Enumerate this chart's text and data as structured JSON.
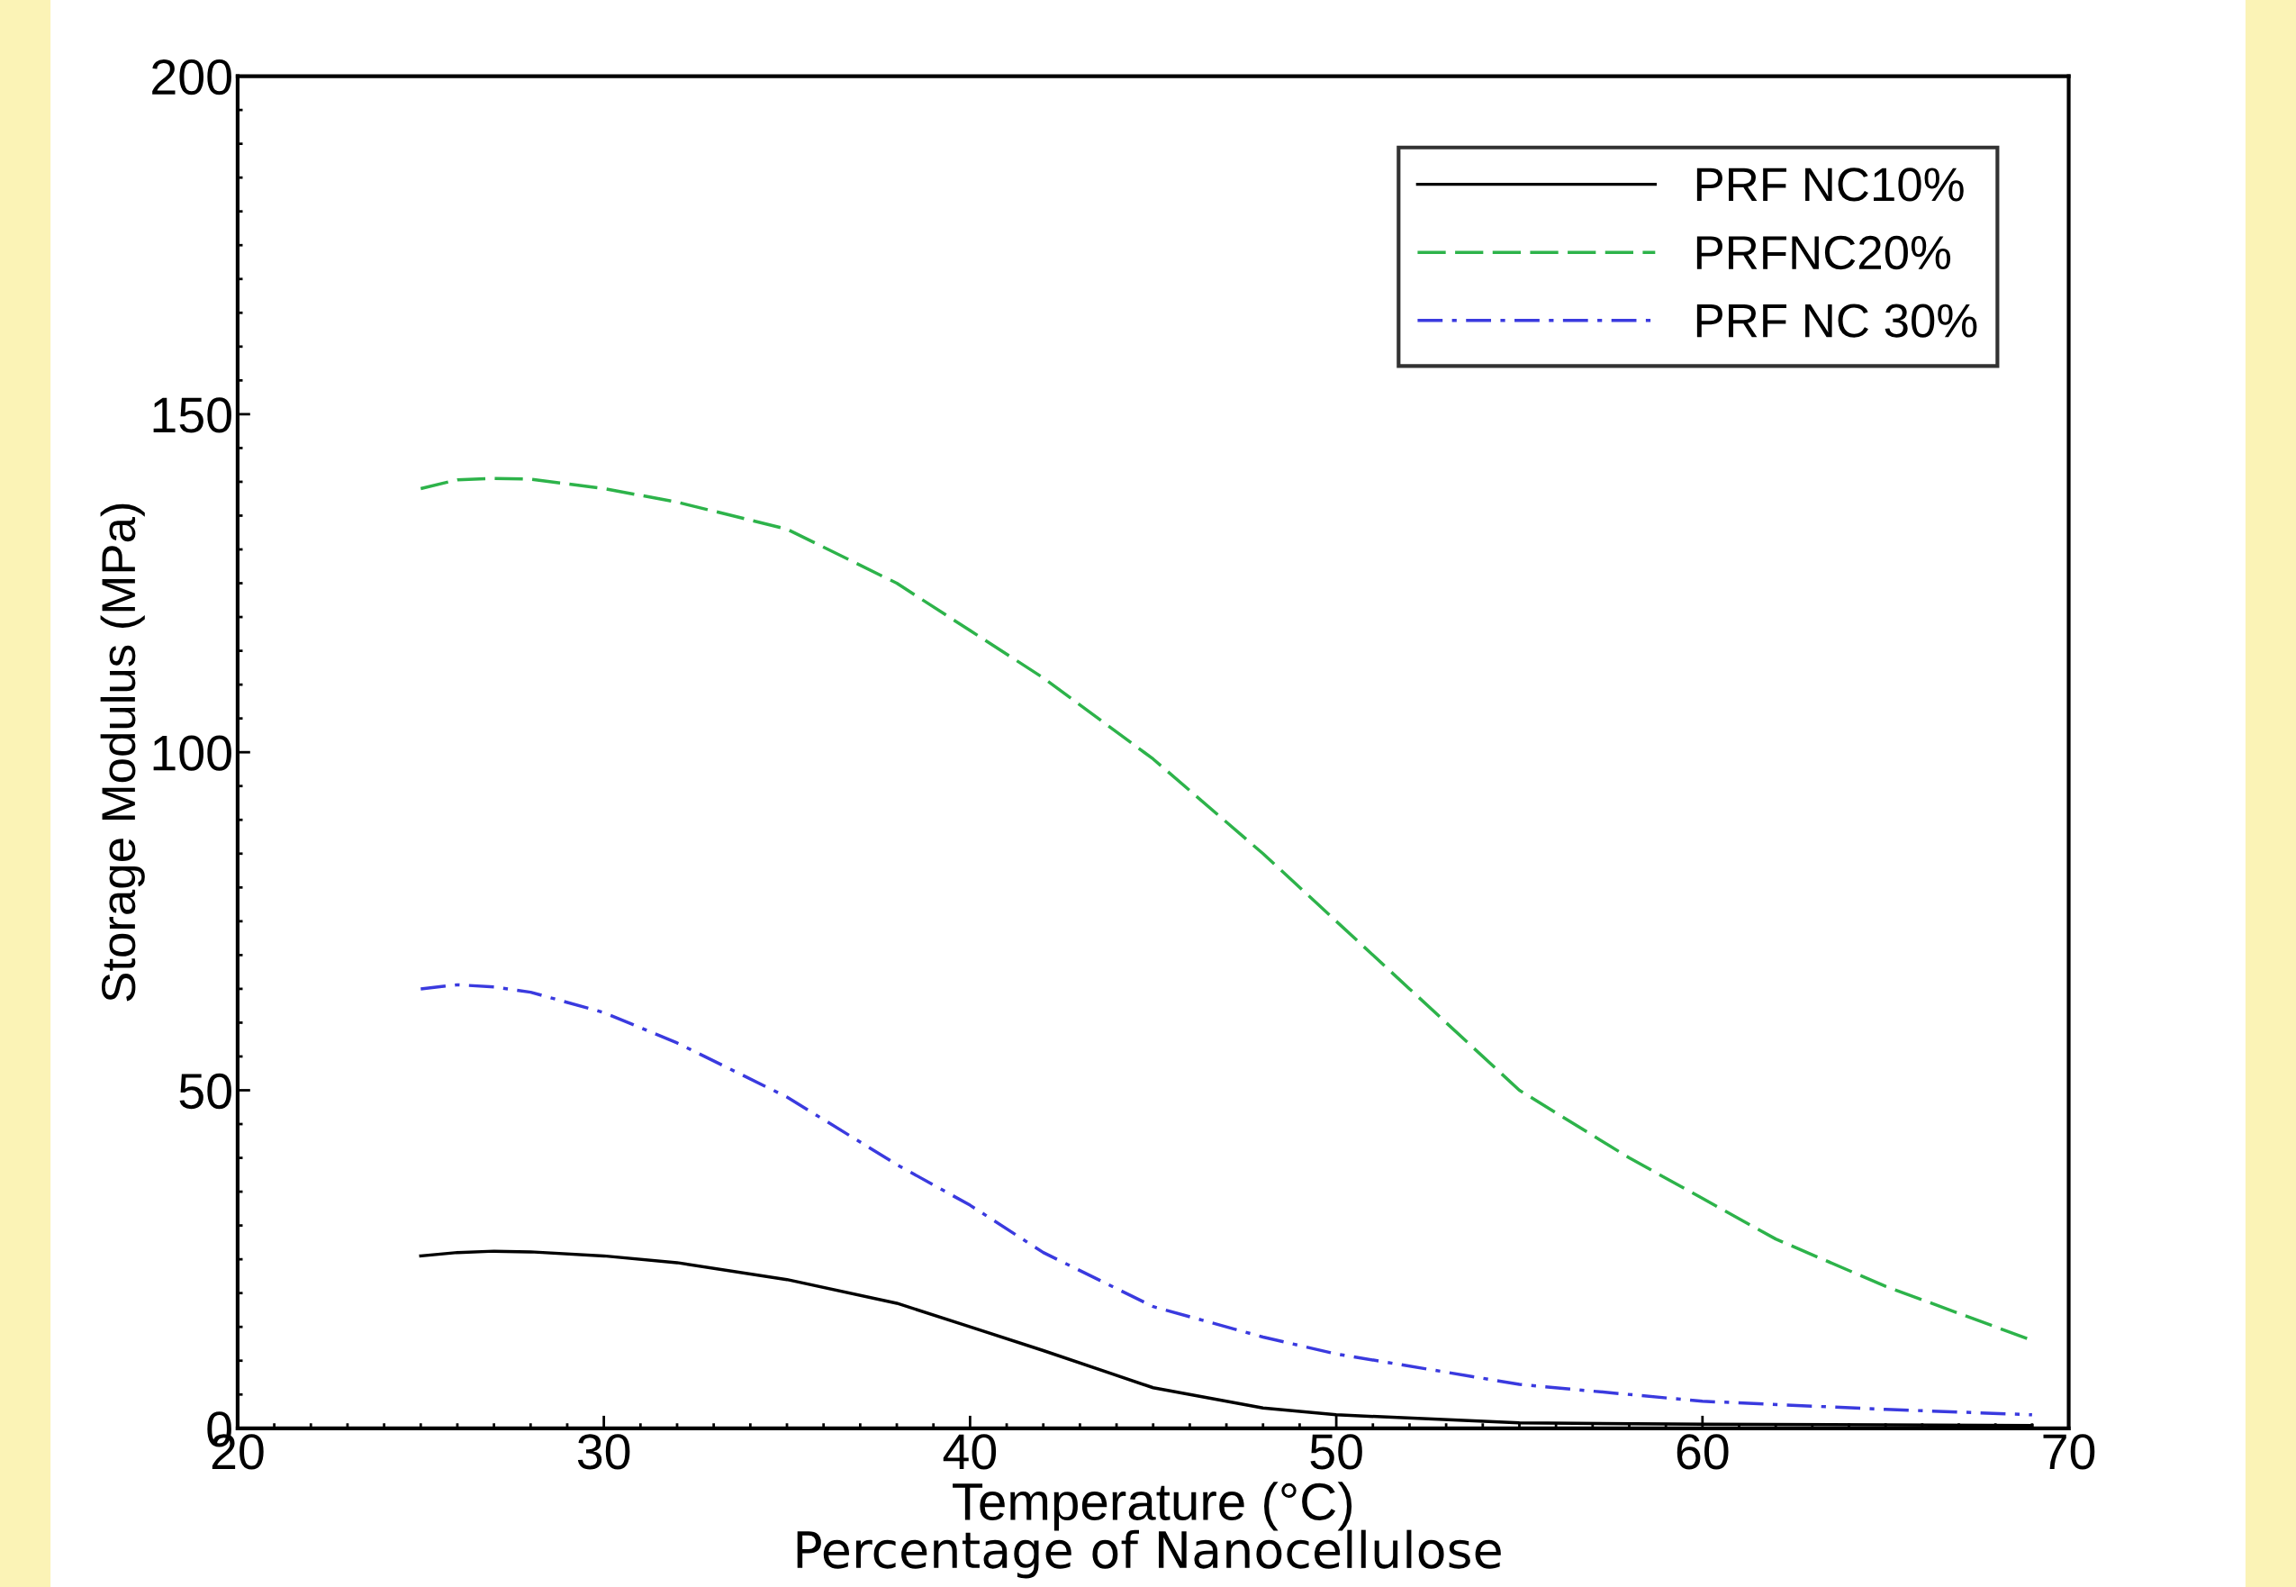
{
  "chart_data": {
    "type": "line",
    "xlabel": "Temperature (°C)",
    "ylabel": "Storage Modulus (MPa)",
    "xlim": [
      20,
      70
    ],
    "xticks": [
      20,
      30,
      40,
      50,
      60,
      70
    ],
    "ylim": [
      0,
      200
    ],
    "yticks": [
      0,
      50,
      100,
      150,
      200
    ],
    "grid": false,
    "legend": "top right",
    "marker": "none",
    "annotations": [
      "Percentage of Nanocellulose"
    ],
    "series": [
      {
        "name": "PRF NC10%",
        "color": "#000000",
        "line_style": "solid",
        "x": [
          25,
          26,
          27,
          28,
          30,
          32,
          35,
          38,
          40,
          42,
          45,
          48,
          50,
          55,
          60,
          65,
          69
        ],
        "values": [
          25.5,
          26,
          26.2,
          26.1,
          25.5,
          24.5,
          22,
          18.5,
          15,
          11.5,
          6,
          3,
          2,
          0.8,
          0.6,
          0.5,
          0.4
        ]
      },
      {
        "name": "PRFNC20%",
        "color": "#2db34a",
        "line_style": "dashed",
        "x": [
          25,
          26,
          27,
          28,
          30,
          32,
          35,
          38,
          40,
          42,
          45,
          48,
          50,
          52,
          55,
          58,
          60,
          62,
          65,
          67,
          69
        ],
        "values": [
          139,
          140.3,
          140.5,
          140.4,
          139,
          137,
          133,
          125,
          118,
          111,
          99,
          85,
          75,
          65,
          50,
          40,
          34,
          28,
          21,
          17,
          13
        ]
      },
      {
        "name": "PRF NC 30%",
        "color": "#3a3adf",
        "line_style": "dashdot",
        "x": [
          25,
          26,
          27,
          28,
          30,
          32,
          35,
          38,
          40,
          42,
          45,
          48,
          50,
          55,
          60,
          65,
          69
        ],
        "values": [
          65,
          65.6,
          65.3,
          64.5,
          61.5,
          57,
          49,
          39,
          33,
          26,
          18,
          13.5,
          11,
          6.5,
          4,
          2.8,
          2
        ]
      }
    ]
  }
}
